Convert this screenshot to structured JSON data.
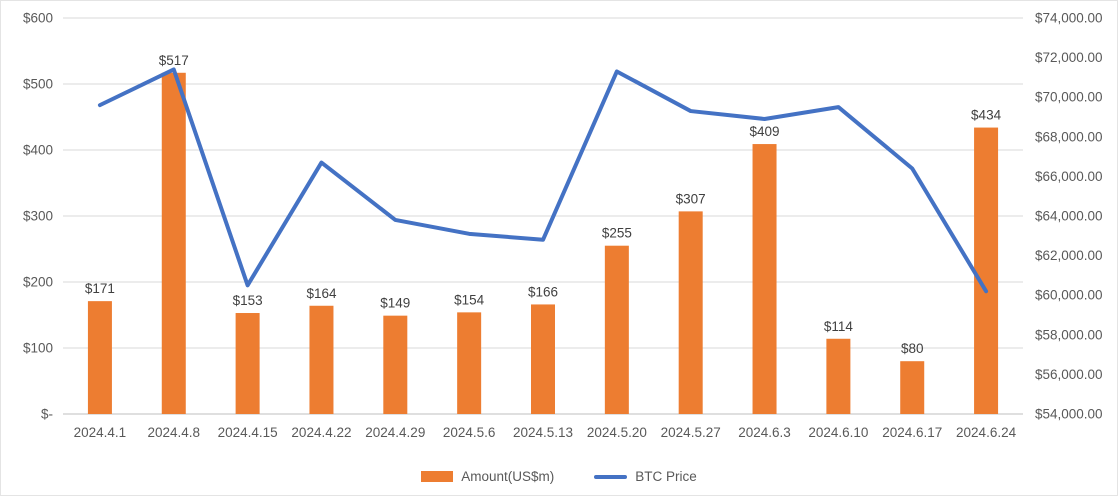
{
  "chart_data": {
    "type": "combo-bar-line",
    "title": "",
    "categories": [
      "2024.4.1",
      "2024.4.8",
      "2024.4.15",
      "2024.4.22",
      "2024.4.29",
      "2024.5.6",
      "2024.5.13",
      "2024.5.20",
      "2024.5.27",
      "2024.6.3",
      "2024.6.10",
      "2024.6.17",
      "2024.6.24"
    ],
    "series": [
      {
        "name": "Amount(US$m)",
        "type": "bar",
        "axis": "left",
        "color": "#ED7D31",
        "values": [
          171,
          517,
          153,
          164,
          149,
          154,
          166,
          255,
          307,
          409,
          114,
          80,
          434
        ],
        "data_labels": [
          "$171",
          "$517",
          "$153",
          "$164",
          "$149",
          "$154",
          "$166",
          "$255",
          "$307",
          "$409",
          "$114",
          "$80",
          "$434"
        ]
      },
      {
        "name": "BTC Price",
        "type": "line",
        "axis": "right",
        "color": "#4472C4",
        "values": [
          69600,
          71400,
          60500,
          66700,
          63800,
          63100,
          62800,
          71300,
          69300,
          68900,
          69500,
          66400,
          60200
        ]
      }
    ],
    "left_axis": {
      "min": 0,
      "max": 600,
      "step": 100,
      "tick_labels": [
        "$-",
        "$100",
        "$200",
        "$300",
        "$400",
        "$500",
        "$600"
      ]
    },
    "right_axis": {
      "min": 54000,
      "max": 74000,
      "step": 2000,
      "tick_labels": [
        "$54,000.00",
        "$56,000.00",
        "$58,000.00",
        "$60,000.00",
        "$62,000.00",
        "$64,000.00",
        "$66,000.00",
        "$68,000.00",
        "$70,000.00",
        "$72,000.00",
        "$74,000.00"
      ]
    },
    "grid": true,
    "legend_position": "bottom",
    "colors": {
      "text": "#595959",
      "data_label": "#404040",
      "gridline": "#D9D9D9",
      "axis_line": "#BFBFBF"
    }
  }
}
